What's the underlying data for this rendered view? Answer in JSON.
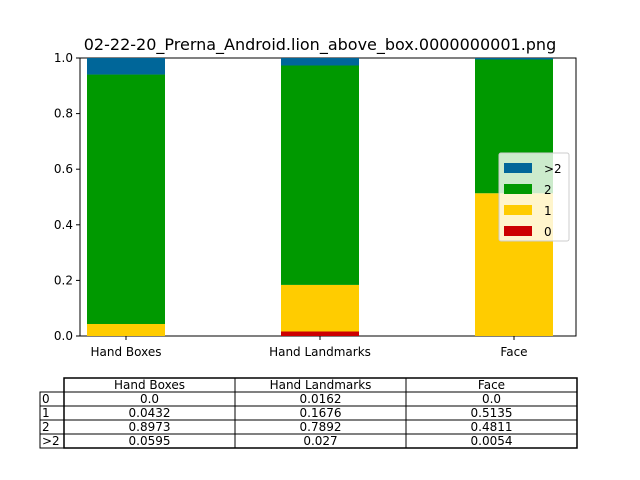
{
  "chart_data": {
    "type": "bar",
    "stacked": true,
    "title": "02-22-20_Prerna_Android.lion_above_box.0000000001.png",
    "xlabel": "",
    "ylabel": "",
    "categories": [
      "Hand Boxes",
      "Hand Landmarks",
      "Face"
    ],
    "ylim": [
      0,
      1.0
    ],
    "yticks": [
      "0.0",
      "0.2",
      "0.4",
      "0.6",
      "0.8",
      "1.0"
    ],
    "grid": false,
    "legend_position": "center-right",
    "series": [
      {
        "name": "0",
        "color": "#cc0000",
        "values": [
          0.0,
          0.0162,
          0.0
        ]
      },
      {
        "name": "1",
        "color": "#ffcc00",
        "values": [
          0.0432,
          0.1676,
          0.5135
        ]
      },
      {
        "name": "2",
        "color": "#009900",
        "values": [
          0.8973,
          0.7892,
          0.4811
        ]
      },
      {
        "name": ">2",
        "color": "#006699",
        "values": [
          0.0595,
          0.027,
          0.0054
        ]
      }
    ],
    "legend_order": [
      ">2",
      "2",
      "1",
      "0"
    ],
    "table": {
      "col_labels": [
        "Hand Boxes",
        "Hand Landmarks",
        "Face"
      ],
      "row_labels": [
        "0",
        "1",
        "2",
        ">2"
      ],
      "cells": [
        [
          "0.0",
          "0.0162",
          "0.0"
        ],
        [
          "0.0432",
          "0.1676",
          "0.5135"
        ],
        [
          "0.8973",
          "0.7892",
          "0.4811"
        ],
        [
          "0.0595",
          "0.027",
          "0.0054"
        ]
      ]
    }
  }
}
